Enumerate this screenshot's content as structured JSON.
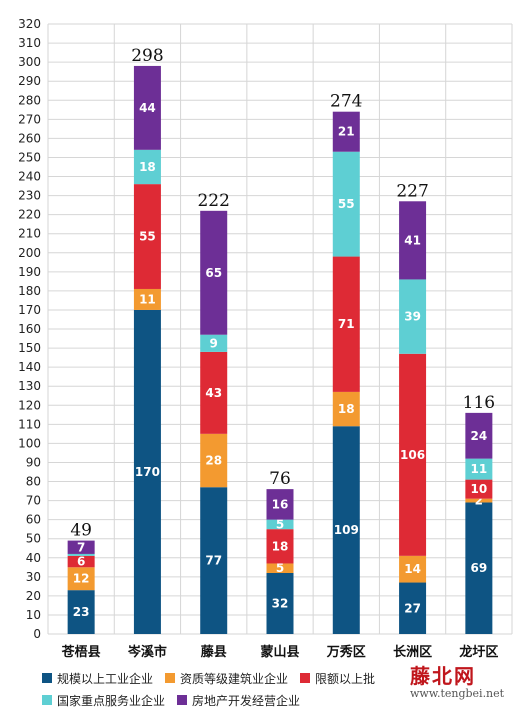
{
  "chart_data": {
    "type": "bar",
    "stacked": true,
    "categories": [
      "苍梧县",
      "岑溪市",
      "藤县",
      "蒙山县",
      "万秀区",
      "长洲区",
      "龙圩区"
    ],
    "series": [
      {
        "name": "规模以上工业企业",
        "color": "#0e5483",
        "values": [
          23,
          170,
          77,
          32,
          109,
          27,
          69
        ]
      },
      {
        "name": "资质等级建筑业企业",
        "color": "#f39a30",
        "values": [
          12,
          11,
          28,
          5,
          18,
          14,
          2
        ]
      },
      {
        "name": "限额以上批发零售住宿餐饮业企业",
        "color": "#de2a35",
        "values": [
          6,
          55,
          43,
          18,
          71,
          106,
          10
        ]
      },
      {
        "name": "国家重点服务业企业",
        "color": "#5ecfd3",
        "values": [
          1,
          18,
          9,
          5,
          55,
          39,
          11
        ]
      },
      {
        "name": "房地产开发经营企业",
        "color": "#6d2f96",
        "values": [
          7,
          44,
          65,
          16,
          21,
          41,
          24
        ]
      }
    ],
    "segment_labels": [
      [
        "23",
        "12",
        "6",
        "",
        "7"
      ],
      [
        "170",
        "11",
        "55",
        "18",
        "44"
      ],
      [
        "77",
        "28",
        "43",
        "9",
        "65"
      ],
      [
        "32",
        "5",
        "18",
        "5",
        "16"
      ],
      [
        "109",
        "18",
        "71",
        "55",
        "21"
      ],
      [
        "27",
        "14",
        "106",
        "39",
        "41"
      ],
      [
        "69",
        "2",
        "10",
        "11",
        "24"
      ]
    ],
    "totals": [
      "49",
      "298",
      "222",
      "76",
      "274",
      "227",
      "116"
    ],
    "ylim": [
      0,
      320
    ],
    "ytick_step": 10,
    "grid": true,
    "legend_position": "bottom"
  },
  "legend": {
    "items": [
      "规模以上工业企业",
      "资质等级建筑业企业",
      "限额以上批",
      "国家重点服务业企业",
      "房地产开发经营企业"
    ]
  },
  "watermark": {
    "title": "藤北网",
    "url": "www.tengbei.net"
  }
}
